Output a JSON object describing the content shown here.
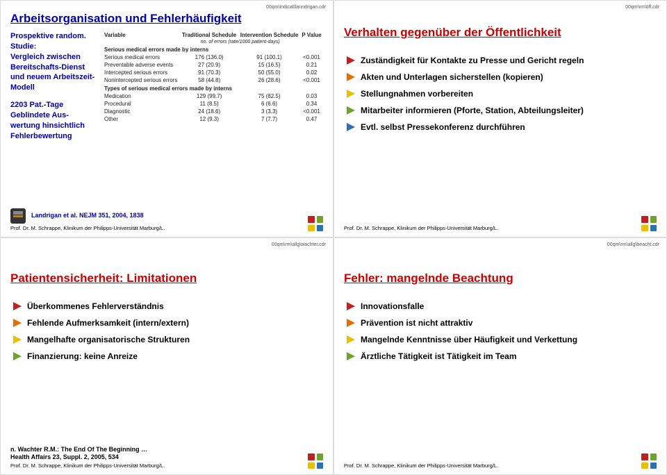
{
  "colors": {
    "red": "#cc0000",
    "blue": "#0000aa",
    "arrow_colors": [
      "#c02020",
      "#e07000",
      "#e8c000",
      "#70a030",
      "#3070b0",
      "#704090"
    ],
    "logo": [
      "#c02020",
      "#70a030",
      "#e8c000",
      "#3070b0"
    ]
  },
  "attribution": "Prof. Dr. M. Schrappe, Klinikum der Philipps-Universität Marburg/L.",
  "slide1": {
    "file": "00qm\\indicat\\lanndrigan.cdr",
    "title": "Arbeitsorganisation und Fehlerhäufigkeit",
    "study_p1": "Prospektive random. Studie:\nVergleich zwischen Bereitschafts-Dienst und neuem Arbeitszeit-Modell",
    "study_p2": "2203 Pat.-Tage\nGeblindete Aus-wertung hinsichtlich Fehlerbewertung",
    "ref": "Landrigan et al. NEJM 351, 2004, 1838",
    "table": {
      "headers": [
        "Variable",
        "Traditional Schedule",
        "Intervention Schedule",
        "P Value"
      ],
      "sub": "no. of errors (rate/1000 patient-days)",
      "group1": "Serious medical errors made by interns",
      "rows1": [
        [
          "Serious medical errors",
          "176 (136.0)",
          "91 (100.1)",
          "<0.001"
        ],
        [
          "Preventable adverse events",
          "27 (20.9)",
          "15 (16.5)",
          "0.21"
        ],
        [
          "Intercepted serious errors",
          "91 (70.3)",
          "50 (55.0)",
          "0.02"
        ],
        [
          "Nonintercepted serious errors",
          "58 (44.8)",
          "26 (28.6)",
          "<0.001"
        ]
      ],
      "group2": "Types of serious medical errors made by interns",
      "rows2": [
        [
          "Medication",
          "129 (99.7)",
          "75 (82.5)",
          "0.03"
        ],
        [
          "Procedural",
          "11 (8.5)",
          "6 (6.6)",
          "0.34"
        ],
        [
          "Diagnostic",
          "24 (18.6)",
          "3 (3.3)",
          "<0.001"
        ],
        [
          "Other",
          "12 (9.3)",
          "7 (7.7)",
          "0.47"
        ]
      ]
    }
  },
  "slide2": {
    "file": "00qm\\rm\\öff.cdr",
    "title": "Verhalten gegenüber der Öffentlichkeit",
    "bullets": [
      "Zuständigkeit für Kontakte zu Presse und Gericht regeln",
      "Akten und Unterlagen sicherstellen (kopieren)",
      "Stellungnahmen vorbereiten",
      "Mitarbeiter informieren (Pforte, Station, Abteilungsleiter)",
      "Evtl. selbst Pressekonferenz durchführen"
    ]
  },
  "slide3": {
    "file": "00qm\\rm\\allg\\wachter.cdr",
    "title": "Patientensicherheit: Limitationen",
    "bullets": [
      "Überkommenes Fehlerverständnis",
      "Fehlende Aufmerksamkeit (intern/extern)",
      "Mangelhafte organisatorische Strukturen",
      "Finanzierung: keine Anreize"
    ],
    "ref1": "n. Wachter R.M.: The End Of The Beginning …",
    "ref2": "Health Affairs 23, Suppl. 2, 2005, 534"
  },
  "slide4": {
    "file": "00qm\\rm\\allg\\beacht.cdr",
    "title": "Fehler: mangelnde Beachtung",
    "bullets": [
      "Innovationsfalle",
      "Prävention ist nicht attraktiv",
      "Mangelnde Kenntnisse über Häufigkeit und Verkettung",
      "Ärztliche Tätigkeit ist Tätigkeit im Team"
    ]
  }
}
